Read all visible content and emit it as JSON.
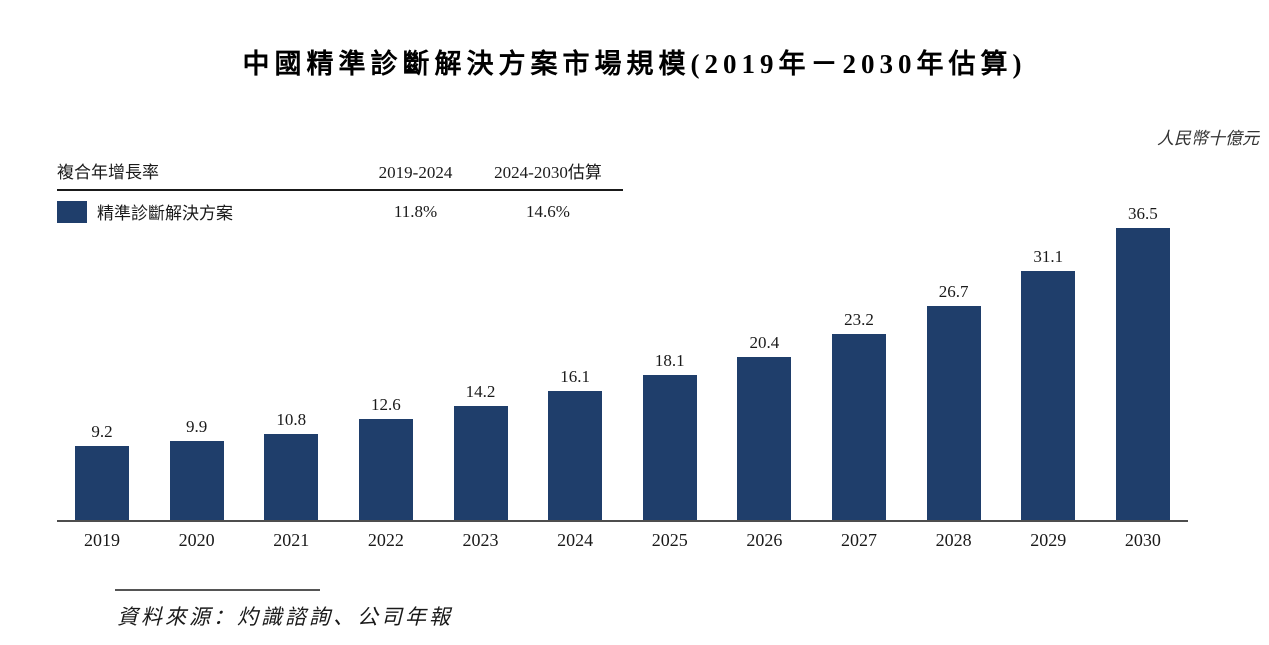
{
  "title": "中國精準診斷解決方案市場規模(2019年－2030年估算)",
  "unit_label": "人民幣十億元",
  "cagr_table": {
    "header": "複合年增長率",
    "period_1": "2019-2024",
    "period_2": "2024-2030估算",
    "series_label": "精準診斷解決方案",
    "value_1": "11.8%",
    "value_2": "14.6%"
  },
  "chart_data": {
    "type": "bar",
    "title": "中國精準診斷解決方案市場規模(2019年－2030年估算)",
    "unit": "人民幣十億元",
    "series_name": "精準診斷解決方案",
    "categories": [
      "2019",
      "2020",
      "2021",
      "2022",
      "2023",
      "2024",
      "2025",
      "2026",
      "2027",
      "2028",
      "2029",
      "2030"
    ],
    "values": [
      9.2,
      9.9,
      10.8,
      12.6,
      14.2,
      16.1,
      18.1,
      20.4,
      23.2,
      26.7,
      31.1,
      36.5
    ],
    "data_labels": true,
    "grid": false,
    "ylim": [
      0,
      39
    ],
    "bar_color": "#1f3e6b",
    "cagr_2019_2024": "11.8%",
    "cagr_2024_2030": "14.6%"
  },
  "source": "資料來源：灼識諮詢、公司年報"
}
